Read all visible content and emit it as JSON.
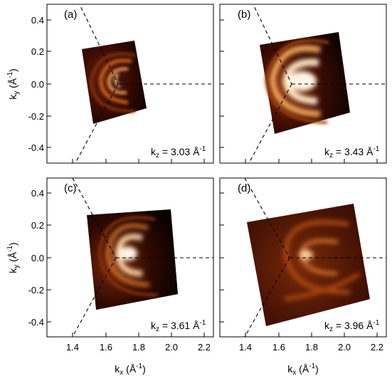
{
  "figure": {
    "x_ticks": [
      "1.4",
      "1.6",
      "1.8",
      "2.0",
      "2.2"
    ],
    "y_ticks": [
      "0.4",
      "0.2",
      "0.0",
      "-0.2",
      "-0.4"
    ],
    "x_axis_label": {
      "main": "k",
      "sub": "x",
      "unit": " (Å",
      "sup": "-1",
      "close": ")"
    },
    "y_axis_label": {
      "main": "k",
      "sub": "y",
      "unit": " (Å",
      "sup": "-1",
      "close": ")"
    },
    "panels": [
      {
        "letter": "(a)",
        "kz_value": " = 3.03 Å",
        "kz_sup": "-1"
      },
      {
        "letter": "(b)",
        "kz_value": " = 3.43 Å",
        "kz_sup": "-1"
      },
      {
        "letter": "(c)",
        "kz_value": " = 3.61 Å",
        "kz_sup": "-1"
      },
      {
        "letter": "(d)",
        "kz_value": " = 3.96 Å",
        "kz_sup": "-1"
      }
    ],
    "kz_symbol": {
      "main": "k",
      "sub": "z"
    }
  },
  "chart_data": {
    "type": "heatmap",
    "colormap": [
      "#000000",
      "#3a0a02",
      "#7a2507",
      "#b84a12",
      "#e98a3a",
      "#fff3e0"
    ],
    "xlim": [
      1.3,
      2.3
    ],
    "ylim": [
      -0.5,
      0.5
    ],
    "x_tick_values": [
      1.4,
      1.6,
      1.8,
      2.0,
      2.2
    ],
    "y_tick_values": [
      0.4,
      0.2,
      0.0,
      -0.2,
      -0.4
    ],
    "panels": [
      {
        "letter": "(a)",
        "kz": 3.03,
        "unit": "Å^-1"
      },
      {
        "letter": "(b)",
        "kz": 3.43,
        "unit": "Å^-1"
      },
      {
        "letter": "(c)",
        "kz": 3.61,
        "unit": "Å^-1"
      },
      {
        "letter": "(d)",
        "kz": 3.96,
        "unit": "Å^-1"
      }
    ]
  }
}
